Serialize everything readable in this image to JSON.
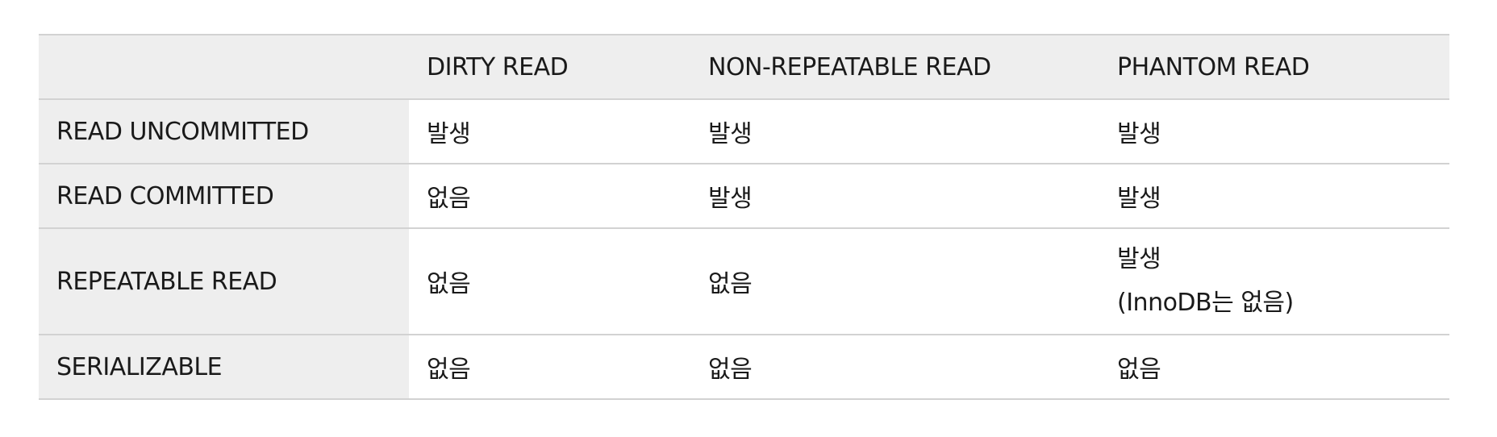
{
  "table": {
    "headers": [
      "",
      "DIRTY READ",
      "NON-REPEATABLE READ",
      "PHANTOM READ"
    ],
    "rows": [
      {
        "level": "READ UNCOMMITTED",
        "dirty_read": "발생",
        "non_repeatable_read": "발생",
        "phantom_read": [
          "발생"
        ]
      },
      {
        "level": "READ COMMITTED",
        "dirty_read": "없음",
        "non_repeatable_read": "발생",
        "phantom_read": [
          "발생"
        ]
      },
      {
        "level": "REPEATABLE READ",
        "dirty_read": "없음",
        "non_repeatable_read": "없음",
        "phantom_read": [
          "발생",
          "(InnoDB는 없음)"
        ]
      },
      {
        "level": "SERIALIZABLE",
        "dirty_read": "없음",
        "non_repeatable_read": "없음",
        "phantom_read": [
          "없음"
        ]
      }
    ]
  },
  "colors": {
    "header_background": "#eeeeee",
    "row_header_background": "#eeeeee",
    "border": "#d2d2d2",
    "text": "#1a1a1a"
  }
}
